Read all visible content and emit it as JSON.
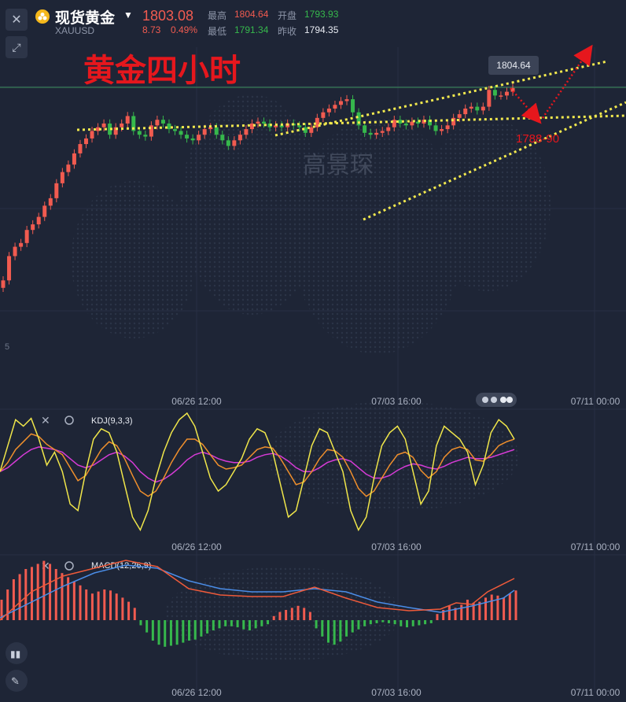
{
  "header": {
    "title": "现货黄金",
    "symbol": "XAUUSD",
    "price": "1803.08",
    "change": "8.73",
    "change_pct": "0.49%",
    "high_label": "最高",
    "high_value": "1804.64",
    "low_label": "最低",
    "low_value": "1791.34",
    "open_label": "开盘",
    "open_value": "1793.93",
    "prev_close_label": "昨收",
    "prev_close_value": "1794.35",
    "icons": {
      "close": "close-icon",
      "expand": "expand-icon",
      "logo": "gold-coins-icon",
      "dropdown": "chevron-down-icon"
    }
  },
  "annotations": {
    "title_text": "黄金四小时",
    "watermark": "高景琛",
    "target_label": "1788-90",
    "high_tag": "1804.64",
    "axis_fragment": "5"
  },
  "time_labels": [
    "06/26 12:00",
    "07/03 16:00",
    "07/11 00:00"
  ],
  "panels": {
    "kdj": {
      "label": "KDJ(9,3,3)"
    },
    "macd": {
      "label": "MACD(12,26,9)"
    }
  },
  "colors": {
    "background": "#1e2536",
    "up": "#f15b50",
    "down": "#36b84c",
    "trendline": "#f2e94e",
    "annotation": "#e6171d",
    "kdj_k": "#f0e64a",
    "kdj_d": "#ef8f2c",
    "kdj_j": "#d63bd6",
    "macd_dif": "#ee5a3a",
    "macd_dea": "#4a8de8"
  },
  "chart_data": [
    {
      "type": "candlestick",
      "symbol": "XAUUSD",
      "interval": "4 hours",
      "bars": [
        1700,
        1713,
        1718,
        1720,
        1727,
        1730,
        1734,
        1740,
        1744,
        1752,
        1758,
        1762,
        1768,
        1773,
        1776,
        1780,
        1782,
        1784,
        1778,
        1782,
        1784,
        1788,
        1780,
        1778,
        1777,
        1783,
        1786,
        1784,
        1781,
        1780,
        1778,
        1776,
        1775,
        1778,
        1781,
        1782,
        1778,
        1775,
        1772,
        1775,
        1778,
        1781,
        1784,
        1785,
        1784,
        1782,
        1783,
        1782,
        1784,
        1783,
        1782,
        1779,
        1782,
        1787,
        1790,
        1792,
        1794,
        1796,
        1797,
        1790,
        1783,
        1779,
        1778,
        1779,
        1780,
        1782,
        1786,
        1784,
        1783,
        1785,
        1784,
        1786,
        1783,
        1780,
        1781,
        1783,
        1787,
        1789,
        1792,
        1793,
        1791,
        1793,
        1802,
        1799,
        1799,
        1801,
        1803
      ],
      "last": 1803.08,
      "high": 1804.64,
      "low": 1791.34,
      "open": 1793.93,
      "prev_close": 1794.35,
      "annotated_target": "1788-90"
    },
    {
      "type": "line",
      "name": "KDJ(9,3,3)",
      "ylim": [
        0,
        100
      ],
      "series": [
        {
          "name": "K",
          "values": [
            55,
            75,
            95,
            90,
            96,
            80,
            60,
            70,
            55,
            30,
            25,
            55,
            80,
            88,
            85,
            70,
            45,
            20,
            10,
            25,
            50,
            70,
            85,
            95,
            100,
            90,
            70,
            50,
            40,
            45,
            55,
            65,
            80,
            88,
            85,
            70,
            45,
            20,
            25,
            50,
            75,
            88,
            85,
            70,
            55,
            25,
            10,
            20,
            50,
            75,
            85,
            90,
            80,
            55,
            30,
            40,
            75,
            90,
            85,
            80,
            70,
            45,
            60,
            85,
            95,
            90,
            80
          ]
        },
        {
          "name": "D",
          "values": [
            55,
            62,
            72,
            78,
            84,
            82,
            76,
            72,
            68,
            58,
            48,
            52,
            62,
            72,
            78,
            75,
            65,
            52,
            40,
            36,
            40,
            50,
            62,
            72,
            80,
            80,
            76,
            68,
            60,
            57,
            58,
            60,
            66,
            72,
            74,
            73,
            65,
            55,
            45,
            47,
            55,
            65,
            72,
            71,
            66,
            55,
            42,
            36,
            40,
            50,
            60,
            68,
            70,
            66,
            56,
            50,
            55,
            66,
            72,
            74,
            72,
            64,
            63,
            68,
            75,
            78,
            80
          ]
        },
        {
          "name": "J",
          "values": [
            55,
            58,
            63,
            68,
            72,
            74,
            73,
            72,
            70,
            65,
            60,
            58,
            60,
            64,
            68,
            70,
            67,
            62,
            55,
            50,
            47,
            49,
            53,
            58,
            64,
            68,
            70,
            68,
            65,
            63,
            62,
            62,
            63,
            66,
            68,
            69,
            67,
            63,
            58,
            55,
            55,
            58,
            62,
            64,
            65,
            63,
            58,
            53,
            50,
            50,
            52,
            56,
            59,
            61,
            60,
            58,
            57,
            59,
            62,
            64,
            66,
            65,
            65,
            66,
            68,
            70,
            72
          ]
        }
      ]
    },
    {
      "type": "bar",
      "name": "MACD(12,26,9)",
      "series": [
        {
          "name": "MACD",
          "values": [
            2,
            3,
            4,
            4.5,
            5,
            5.2,
            5.5,
            5.8,
            5.5,
            5,
            4.6,
            4.2,
            3.8,
            3.4,
            3,
            2.6,
            2.8,
            3,
            2.9,
            2.6,
            2.2,
            1.8,
            1.2,
            -0.5,
            -1.2,
            -2,
            -2.4,
            -2.6,
            -2.5,
            -2.4,
            -2.2,
            -2,
            -1.9,
            -1.6,
            -1.3,
            -1,
            -0.8,
            -0.6,
            -0.6,
            -0.7,
            -0.9,
            -1,
            -0.8,
            -0.6,
            -0.4,
            0.4,
            0.8,
            1,
            1.2,
            1.4,
            1.2,
            0.8,
            -0.8,
            -1.6,
            -2.2,
            -2.4,
            -2.1,
            -1.6,
            -1.2,
            -0.9,
            -0.6,
            -0.4,
            -0.3,
            -0.2,
            -0.3,
            -0.4,
            -0.6,
            -0.7,
            -0.6,
            -0.5,
            -0.4,
            -0.3,
            0.6,
            1,
            1.4,
            1.2,
            1.5,
            2,
            1.7,
            1.8,
            2.2,
            2.5,
            2.4,
            2.2,
            2.6,
            2.9
          ]
        }
      ]
    }
  ]
}
